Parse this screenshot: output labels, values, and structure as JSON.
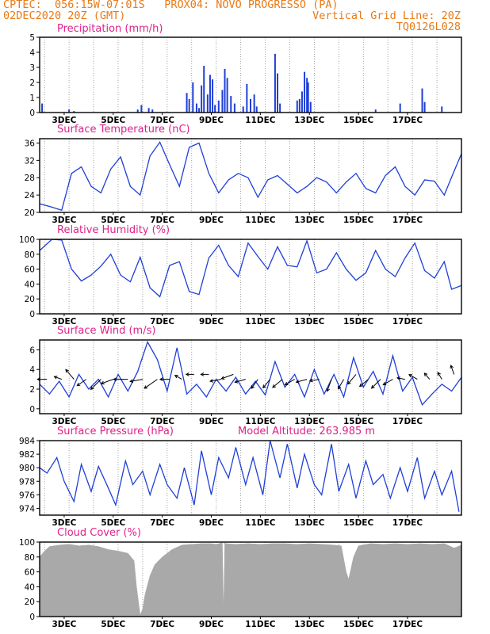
{
  "header": {
    "line1": "CPTEC:  056:15W-07:01S   PROX04: NOVO PROGRESSO (PA)",
    "line2_left": "02DEC2020 20Z (GMT)",
    "line2_right": "Vertical Grid Line: 20Z",
    "line3_right": "TQ0126L028"
  },
  "colors": {
    "series": "#1f3fd8",
    "title": "#e0218a",
    "header": "#e87a16",
    "cloud": "#a9a9a9",
    "grid": "#8c8c8c"
  },
  "x_labels": [
    "3DEC",
    "5DEC",
    "7DEC",
    "9DEC",
    "11DEC",
    "13DEC",
    "15DEC",
    "17DEC"
  ],
  "chart_data": [
    {
      "type": "bar",
      "title": "Precipitation (mm/h)",
      "ylim": [
        0,
        5
      ],
      "yticks": [
        0,
        1,
        2,
        3,
        4,
        5
      ],
      "x": [
        0.1,
        1.2,
        1.4,
        4.0,
        4.15,
        4.45,
        4.6,
        6.0,
        6.1,
        6.25,
        6.4,
        6.5,
        6.6,
        6.7,
        6.85,
        6.95,
        7.05,
        7.15,
        7.3,
        7.45,
        7.55,
        7.65,
        7.8,
        7.95,
        8.3,
        8.45,
        8.6,
        8.75,
        8.85,
        9.6,
        9.7,
        9.8,
        10.5,
        10.6,
        10.7,
        10.8,
        10.9,
        10.95,
        11.05,
        13.7,
        14.7,
        15.6,
        15.7,
        16.4
      ],
      "values": [
        0.6,
        0.2,
        0.1,
        0.2,
        0.5,
        0.3,
        0.2,
        1.3,
        0.9,
        2.0,
        0.6,
        0.3,
        1.8,
        3.1,
        1.2,
        2.5,
        2.2,
        0.5,
        0.8,
        1.5,
        2.9,
        2.3,
        1.1,
        0.6,
        0.4,
        1.9,
        0.9,
        1.2,
        0.4,
        3.9,
        2.6,
        0.6,
        0.8,
        0.9,
        1.4,
        2.7,
        2.3,
        2.0,
        0.7,
        0.2,
        0.6,
        1.6,
        0.7,
        0.4
      ]
    },
    {
      "type": "line",
      "title": "Surface Temperature (nC)",
      "ylim": [
        20,
        37
      ],
      "yticks": [
        20,
        24,
        28,
        32,
        36
      ],
      "x": [
        0,
        0.5,
        0.9,
        1.3,
        1.7,
        2.1,
        2.5,
        2.9,
        3.3,
        3.7,
        4.1,
        4.5,
        4.9,
        5.3,
        5.7,
        6.1,
        6.5,
        6.9,
        7.3,
        7.7,
        8.1,
        8.5,
        8.9,
        9.3,
        9.7,
        10.1,
        10.5,
        10.9,
        11.3,
        11.7,
        12.1,
        12.5,
        12.9,
        13.3,
        13.7,
        14.1,
        14.5,
        14.9,
        15.3,
        15.7,
        16.1,
        16.5,
        16.9,
        17.2
      ],
      "values": [
        22,
        21.2,
        20.5,
        29,
        30.5,
        26,
        24.5,
        30,
        32.8,
        26,
        24,
        33,
        36.2,
        31,
        26,
        35,
        36,
        29,
        24.5,
        27.5,
        29,
        28,
        23.5,
        27.5,
        28.5,
        26.5,
        24.5,
        26,
        28,
        27,
        24.5,
        27,
        29,
        25.5,
        24.5,
        28.5,
        30.5,
        26,
        24,
        27.5,
        27.2,
        24,
        29.5,
        33.5
      ]
    },
    {
      "type": "line",
      "title": "Relative Humidity (%)",
      "ylim": [
        0,
        100
      ],
      "yticks": [
        0,
        20,
        40,
        60,
        80,
        100
      ],
      "x": [
        0,
        0.5,
        0.9,
        1.3,
        1.7,
        2.1,
        2.5,
        2.9,
        3.3,
        3.7,
        4.1,
        4.5,
        4.9,
        5.3,
        5.7,
        6.1,
        6.5,
        6.9,
        7.3,
        7.7,
        8.1,
        8.5,
        8.9,
        9.3,
        9.7,
        10.1,
        10.5,
        10.9,
        11.3,
        11.7,
        12.1,
        12.5,
        12.9,
        13.3,
        13.7,
        14.1,
        14.5,
        14.9,
        15.3,
        15.7,
        16.1,
        16.5,
        16.8,
        17.2
      ],
      "values": [
        85,
        100,
        99,
        60,
        44,
        52,
        64,
        80,
        52,
        43,
        76,
        35,
        23,
        65,
        70,
        30,
        26,
        75,
        92,
        65,
        50,
        95,
        77,
        60,
        90,
        65,
        63,
        98,
        55,
        60,
        82,
        60,
        45,
        55,
        85,
        60,
        50,
        75,
        95,
        58,
        48,
        70,
        33,
        38
      ]
    },
    {
      "type": "line",
      "title": "Surface Wind (m/s)",
      "ylim": [
        -0.5,
        7
      ],
      "yticks": [
        0,
        2,
        4,
        6
      ],
      "x": [
        0,
        0.4,
        0.8,
        1.2,
        1.6,
        2.0,
        2.4,
        2.8,
        3.2,
        3.6,
        4.0,
        4.4,
        4.8,
        5.2,
        5.6,
        6.0,
        6.4,
        6.8,
        7.2,
        7.6,
        8.0,
        8.4,
        8.8,
        9.2,
        9.6,
        10.0,
        10.4,
        10.8,
        11.2,
        11.6,
        12.0,
        12.4,
        12.8,
        13.2,
        13.6,
        14.0,
        14.4,
        14.8,
        15.2,
        15.6,
        16.0,
        16.4,
        16.8,
        17.2
      ],
      "values": [
        2.5,
        1.5,
        2.8,
        1.2,
        3.5,
        2.0,
        3.0,
        1.2,
        3.5,
        1.8,
        3.8,
        6.8,
        5.0,
        1.8,
        6.2,
        1.5,
        2.5,
        1.2,
        3.0,
        1.8,
        3.2,
        1.5,
        2.8,
        1.4,
        4.8,
        2.2,
        3.5,
        1.2,
        4.0,
        1.5,
        3.5,
        1.2,
        5.2,
        2.2,
        3.8,
        1.5,
        5.4,
        1.8,
        3.2,
        0.4,
        1.5,
        2.5,
        1.8,
        3.2
      ],
      "arrows": {
        "x": [
          0.3,
          0.9,
          1.4,
          1.9,
          2.5,
          3.0,
          3.6,
          4.2,
          4.8,
          5.3,
          5.8,
          6.3,
          6.9,
          7.4,
          7.9,
          8.4,
          8.9,
          9.4,
          9.9,
          10.4,
          10.9,
          11.4,
          11.9,
          12.4,
          12.9,
          13.4,
          13.9,
          14.4,
          14.9,
          15.4,
          15.9,
          16.4,
          16.9
        ],
        "dir": [
          180,
          160,
          130,
          215,
          225,
          200,
          180,
          190,
          215,
          180,
          150,
          180,
          180,
          190,
          200,
          195,
          235,
          230,
          220,
          210,
          195,
          190,
          250,
          240,
          230,
          220,
          225,
          210,
          170,
          150,
          130,
          120,
          110
        ],
        "len": [
          12,
          10,
          16,
          14,
          18,
          16,
          18,
          16,
          20,
          12,
          10,
          10,
          10,
          14,
          16,
          14,
          14,
          14,
          16,
          14,
          14,
          12,
          16,
          14,
          16,
          14,
          16,
          14,
          10,
          12,
          10,
          10,
          12
        ]
      }
    },
    {
      "type": "line",
      "title": "Surface Pressure (hPa)",
      "annotation": "Model Altitude: 263.985 m",
      "ylim": [
        973,
        984
      ],
      "yticks": [
        974,
        976,
        978,
        980,
        982,
        984
      ],
      "x": [
        0,
        0.3,
        0.7,
        1.0,
        1.4,
        1.7,
        2.1,
        2.4,
        2.8,
        3.1,
        3.5,
        3.8,
        4.2,
        4.5,
        4.9,
        5.2,
        5.6,
        5.9,
        6.3,
        6.6,
        7.0,
        7.3,
        7.7,
        8.0,
        8.4,
        8.7,
        9.1,
        9.4,
        9.8,
        10.1,
        10.5,
        10.8,
        11.2,
        11.5,
        11.9,
        12.2,
        12.6,
        12.9,
        13.3,
        13.6,
        14.0,
        14.3,
        14.7,
        15.0,
        15.4,
        15.7,
        16.1,
        16.4,
        16.8,
        17.1
      ],
      "values": [
        980,
        979.2,
        981.5,
        978,
        975,
        980.5,
        976.5,
        980.2,
        977,
        974.5,
        981,
        977.5,
        979.5,
        976,
        980.5,
        977.5,
        975.5,
        980,
        974.5,
        982.5,
        976,
        981.5,
        978.5,
        983,
        977.5,
        981.5,
        976,
        984,
        978.5,
        983.5,
        977,
        982,
        977.5,
        976,
        983.5,
        976.5,
        980.5,
        975.5,
        981,
        977.5,
        979,
        975.5,
        980,
        976.5,
        981.5,
        975.5,
        979.5,
        976,
        979.5,
        973.5
      ]
    },
    {
      "type": "area",
      "title": "Cloud Cover (%)",
      "ylim": [
        0,
        100
      ],
      "yticks": [
        0,
        20,
        40,
        60,
        80,
        100
      ],
      "x": [
        0,
        0.2,
        0.4,
        0.8,
        1.2,
        1.6,
        2.0,
        2.4,
        2.8,
        3.2,
        3.6,
        3.85,
        3.95,
        4.1,
        4.2,
        4.3,
        4.5,
        4.7,
        5.0,
        5.4,
        5.8,
        6.2,
        6.6,
        7.0,
        7.2,
        7.45,
        7.5,
        7.55,
        7.6,
        8.0,
        8.5,
        9.0,
        9.5,
        10.0,
        10.5,
        11.0,
        11.5,
        12.0,
        12.3,
        12.5,
        12.6,
        12.8,
        13.0,
        13.5,
        14.0,
        14.5,
        15.0,
        15.5,
        16.0,
        16.5,
        16.9,
        17.2
      ],
      "values": [
        80,
        88,
        94,
        96,
        97,
        95,
        96,
        94,
        90,
        88,
        85,
        75,
        40,
        2,
        10,
        30,
        55,
        70,
        80,
        90,
        96,
        97,
        98,
        98,
        97,
        99,
        0,
        99,
        98,
        97,
        98,
        97,
        98,
        98,
        97,
        98,
        97,
        96,
        95,
        60,
        50,
        80,
        95,
        98,
        97,
        98,
        97,
        98,
        97,
        98,
        92,
        96
      ]
    }
  ]
}
